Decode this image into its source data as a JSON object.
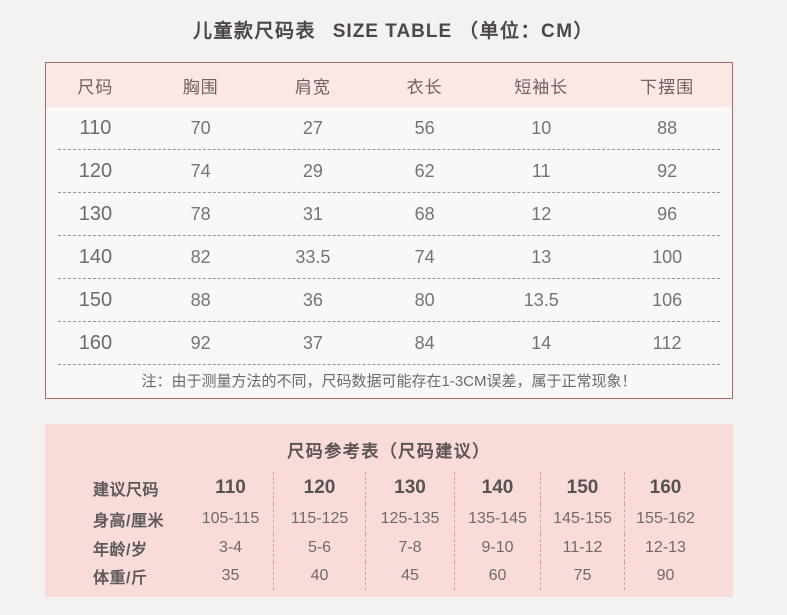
{
  "page_title": {
    "cn": "儿童款尺码表",
    "en": "SIZE TABLE",
    "unit": "（单位：CM）"
  },
  "size_table": {
    "columns": [
      "尺码",
      "胸围",
      "肩宽",
      "衣长",
      "短袖长",
      "下摆围"
    ],
    "rows": [
      [
        "110",
        "70",
        "27",
        "56",
        "10",
        "88"
      ],
      [
        "120",
        "74",
        "29",
        "62",
        "11",
        "92"
      ],
      [
        "130",
        "78",
        "31",
        "68",
        "12",
        "96"
      ],
      [
        "140",
        "82",
        "33.5",
        "74",
        "13",
        "100"
      ],
      [
        "150",
        "88",
        "36",
        "80",
        "13.5",
        "106"
      ],
      [
        "160",
        "92",
        "37",
        "84",
        "14",
        "112"
      ]
    ],
    "note": "注：由于测量方法的不同，尺码数据可能存在1-3CM误差，属于正常现象！"
  },
  "reference_table": {
    "title": "尺码参考表（尺码建议）",
    "rows": [
      {
        "label": "建议尺码",
        "values": [
          "110",
          "120",
          "130",
          "140",
          "150",
          "160"
        ]
      },
      {
        "label": "身高/厘米",
        "values": [
          "105-115",
          "115-125",
          "125-135",
          "135-145",
          "145-155",
          "155-162"
        ]
      },
      {
        "label": "年龄/岁",
        "values": [
          "3-4",
          "5-6",
          "7-8",
          "9-10",
          "11-12",
          "12-13"
        ]
      },
      {
        "label": "体重/斤",
        "values": [
          "35",
          "40",
          "45",
          "60",
          "75",
          "90"
        ]
      }
    ]
  },
  "colors": {
    "page_background": "#f4f2f1",
    "table_body_background": "#f9f8f7",
    "table_border": "#a26c6c",
    "header_pink": "#fbe7e4",
    "section_pink": "#f9dcda",
    "dashed_row_line": "#9f9295",
    "dashed_column_line": "#cba4a3",
    "text_dark": "#4d4848",
    "text_gray": "#747474"
  }
}
